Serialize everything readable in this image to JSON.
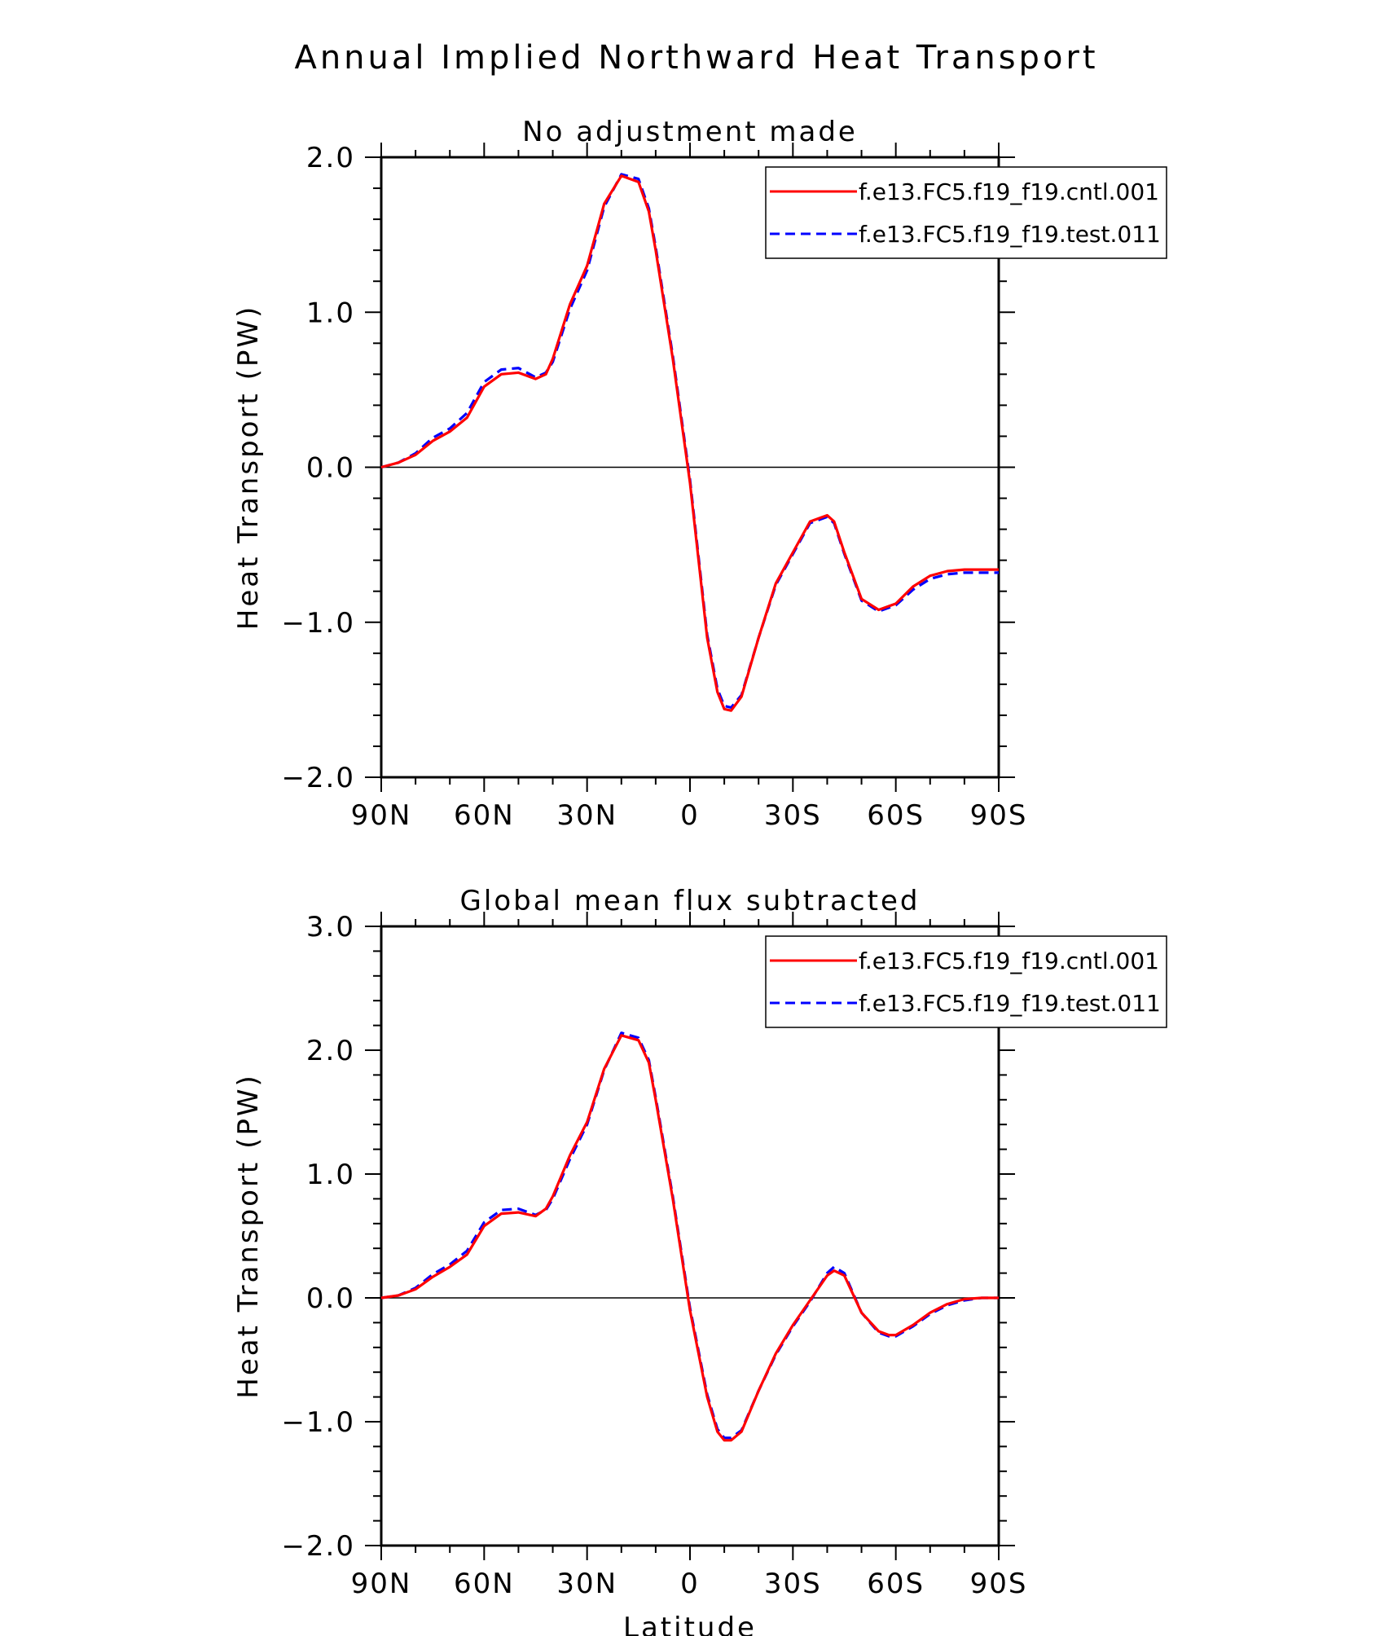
{
  "figure": {
    "title": "Annual Implied Northward Heat Transport"
  },
  "chart_data": [
    {
      "type": "line",
      "title": "No adjustment made",
      "xlabel": "",
      "ylabel": "Heat Transport (PW)",
      "xlim": [
        90,
        -90
      ],
      "ylim": [
        -2.0,
        2.0
      ],
      "xticks": [
        90,
        60,
        30,
        0,
        -30,
        -60,
        -90
      ],
      "xtick_labels": [
        "90N",
        "60N",
        "30N",
        "0",
        "30S",
        "60S",
        "90S"
      ],
      "yticks": [
        -2.0,
        -1.0,
        0.0,
        1.0,
        2.0
      ],
      "ytick_labels": [
        "−2.0",
        "−1.0",
        "0.0",
        "1.0",
        "2.0"
      ],
      "zero_line": true,
      "grid": false,
      "legend_position": "top-right",
      "series": [
        {
          "name": "f.e13.FC5.f19_f19.cntl.001",
          "color": "#ff0000",
          "dash": "solid",
          "x": [
            90,
            85,
            80,
            75,
            70,
            65,
            60,
            55,
            50,
            45,
            42,
            40,
            35,
            30,
            25,
            20,
            15,
            12,
            10,
            5,
            0,
            -5,
            -8,
            -10,
            -12,
            -15,
            -20,
            -25,
            -30,
            -35,
            -40,
            -42,
            -45,
            -50,
            -55,
            -60,
            -65,
            -70,
            -75,
            -80,
            -85,
            -90
          ],
          "y": [
            0.0,
            0.03,
            0.08,
            0.17,
            0.23,
            0.32,
            0.52,
            0.6,
            0.61,
            0.57,
            0.6,
            0.7,
            1.05,
            1.3,
            1.7,
            1.88,
            1.84,
            1.65,
            1.4,
            0.7,
            -0.1,
            -1.1,
            -1.45,
            -1.56,
            -1.57,
            -1.48,
            -1.1,
            -0.75,
            -0.55,
            -0.35,
            -0.31,
            -0.35,
            -0.55,
            -0.85,
            -0.92,
            -0.88,
            -0.77,
            -0.7,
            -0.67,
            -0.66,
            -0.66,
            -0.66
          ]
        },
        {
          "name": "f.e13.FC5.f19_f19.test.011",
          "color": "#0000ff",
          "dash": "dashed",
          "x": [
            90,
            85,
            80,
            75,
            70,
            65,
            60,
            55,
            50,
            45,
            42,
            40,
            35,
            30,
            25,
            20,
            15,
            12,
            10,
            5,
            0,
            -5,
            -8,
            -10,
            -12,
            -15,
            -20,
            -25,
            -30,
            -35,
            -40,
            -42,
            -45,
            -50,
            -55,
            -60,
            -65,
            -70,
            -75,
            -80,
            -85,
            -90
          ],
          "y": [
            0.0,
            0.03,
            0.09,
            0.19,
            0.25,
            0.35,
            0.55,
            0.63,
            0.64,
            0.58,
            0.61,
            0.68,
            1.02,
            1.27,
            1.68,
            1.89,
            1.86,
            1.67,
            1.42,
            0.72,
            -0.08,
            -1.08,
            -1.43,
            -1.54,
            -1.55,
            -1.47,
            -1.1,
            -0.76,
            -0.56,
            -0.36,
            -0.32,
            -0.36,
            -0.56,
            -0.86,
            -0.93,
            -0.89,
            -0.79,
            -0.72,
            -0.69,
            -0.68,
            -0.68,
            -0.68
          ]
        }
      ]
    },
    {
      "type": "line",
      "title": "Global mean flux subtracted",
      "xlabel": "Latitude",
      "ylabel": "Heat Transport (PW)",
      "xlim": [
        90,
        -90
      ],
      "ylim": [
        -2.0,
        3.0
      ],
      "xticks": [
        90,
        60,
        30,
        0,
        -30,
        -60,
        -90
      ],
      "xtick_labels": [
        "90N",
        "60N",
        "30N",
        "0",
        "30S",
        "60S",
        "90S"
      ],
      "yticks": [
        -2.0,
        -1.0,
        0.0,
        1.0,
        2.0,
        3.0
      ],
      "ytick_labels": [
        "−2.0",
        "−1.0",
        "0.0",
        "1.0",
        "2.0",
        "3.0"
      ],
      "zero_line": true,
      "grid": false,
      "legend_position": "top-right",
      "series": [
        {
          "name": "f.e13.FC5.f19_f19.cntl.001",
          "color": "#ff0000",
          "dash": "solid",
          "x": [
            90,
            85,
            80,
            75,
            70,
            65,
            60,
            55,
            50,
            45,
            42,
            40,
            35,
            30,
            25,
            20,
            15,
            12,
            10,
            5,
            0,
            -5,
            -8,
            -10,
            -12,
            -15,
            -20,
            -25,
            -30,
            -35,
            -40,
            -42,
            -45,
            -50,
            -55,
            -58,
            -60,
            -65,
            -70,
            -75,
            -80,
            -85,
            -90
          ],
          "y": [
            0.0,
            0.02,
            0.07,
            0.17,
            0.25,
            0.35,
            0.58,
            0.68,
            0.69,
            0.66,
            0.72,
            0.82,
            1.15,
            1.42,
            1.85,
            2.12,
            2.08,
            1.9,
            1.6,
            0.8,
            -0.1,
            -0.8,
            -1.08,
            -1.15,
            -1.15,
            -1.08,
            -0.75,
            -0.45,
            -0.22,
            -0.02,
            0.18,
            0.22,
            0.18,
            -0.12,
            -0.27,
            -0.3,
            -0.3,
            -0.22,
            -0.12,
            -0.05,
            -0.01,
            0.0,
            0.0
          ]
        },
        {
          "name": "f.e13.FC5.f19_f19.test.011",
          "color": "#0000ff",
          "dash": "dashed",
          "x": [
            90,
            85,
            80,
            75,
            70,
            65,
            60,
            55,
            50,
            45,
            42,
            40,
            35,
            30,
            25,
            20,
            15,
            12,
            10,
            5,
            0,
            -5,
            -8,
            -10,
            -12,
            -15,
            -20,
            -25,
            -30,
            -35,
            -40,
            -42,
            -45,
            -50,
            -55,
            -58,
            -60,
            -65,
            -70,
            -75,
            -80,
            -85,
            -90
          ],
          "y": [
            0.0,
            0.02,
            0.08,
            0.19,
            0.27,
            0.38,
            0.61,
            0.71,
            0.72,
            0.67,
            0.71,
            0.8,
            1.12,
            1.4,
            1.84,
            2.14,
            2.1,
            1.92,
            1.62,
            0.82,
            -0.08,
            -0.78,
            -1.06,
            -1.13,
            -1.13,
            -1.07,
            -0.75,
            -0.46,
            -0.23,
            -0.03,
            0.2,
            0.25,
            0.2,
            -0.12,
            -0.28,
            -0.31,
            -0.31,
            -0.23,
            -0.13,
            -0.06,
            -0.02,
            0.0,
            0.0
          ]
        }
      ]
    }
  ]
}
